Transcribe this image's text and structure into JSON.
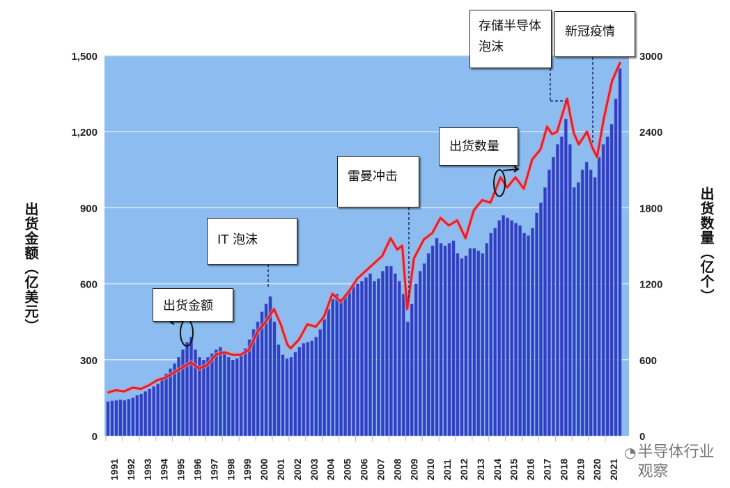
{
  "chart_data": {
    "type": "bar+line",
    "left_axis": {
      "title": "出货金额（亿美元）",
      "ticks": [
        "0",
        "300",
        "600",
        "900",
        "1,200",
        "1,500"
      ],
      "range": [
        0,
        1500
      ]
    },
    "right_axis": {
      "title": "出货数量（亿个）",
      "ticks": [
        "0",
        "600",
        "1200",
        "1800",
        "2400",
        "3000"
      ],
      "range": [
        0,
        3000
      ]
    },
    "x_ticks": [
      "1991",
      "1992",
      "1993",
      "1994",
      "1995",
      "1996",
      "1997",
      "1998",
      "1999",
      "2000",
      "2001",
      "2002",
      "2003",
      "2004",
      "2005",
      "2006",
      "2007",
      "2008",
      "2009",
      "2010",
      "2011",
      "2012",
      "2013",
      "2014",
      "2015",
      "2016",
      "2017",
      "2018",
      "2019",
      "2020",
      "2021"
    ],
    "grid": true,
    "series": [
      {
        "name": "出货金额",
        "type": "bar",
        "axis": "left",
        "frequency": "quarterly",
        "start_year": 1991,
        "color": "#2f3fbf",
        "values": [
          135,
          138,
          140,
          142,
          140,
          145,
          150,
          160,
          165,
          175,
          185,
          195,
          205,
          225,
          245,
          265,
          285,
          310,
          340,
          370,
          390,
          340,
          310,
          300,
          310,
          325,
          340,
          350,
          330,
          310,
          300,
          305,
          320,
          345,
          380,
          420,
          450,
          490,
          520,
          550,
          450,
          360,
          320,
          305,
          310,
          330,
          350,
          365,
          370,
          375,
          390,
          420,
          460,
          500,
          540,
          560,
          540,
          555,
          575,
          590,
          600,
          610,
          625,
          640,
          610,
          620,
          650,
          670,
          670,
          640,
          610,
          560,
          450,
          520,
          600,
          650,
          680,
          720,
          750,
          780,
          760,
          750,
          760,
          770,
          720,
          700,
          710,
          740,
          740,
          730,
          720,
          760,
          800,
          820,
          850,
          870,
          860,
          850,
          840,
          830,
          800,
          790,
          820,
          880,
          920,
          980,
          1050,
          1100,
          1150,
          1180,
          1250,
          1150,
          980,
          1000,
          1050,
          1080,
          1050,
          1020,
          1100,
          1150,
          1180,
          1230,
          1330,
          1450
        ]
      },
      {
        "name": "出货数量",
        "type": "line",
        "axis": "right",
        "color": "#e0202c",
        "points": [
          [
            1991,
            340
          ],
          [
            1991.5,
            360
          ],
          [
            1992,
            350
          ],
          [
            1992.5,
            380
          ],
          [
            1993,
            370
          ],
          [
            1993.5,
            400
          ],
          [
            1994,
            440
          ],
          [
            1994.5,
            460
          ],
          [
            1995,
            500
          ],
          [
            1995.5,
            540
          ],
          [
            1996,
            580
          ],
          [
            1996.5,
            530
          ],
          [
            1997,
            560
          ],
          [
            1997.5,
            640
          ],
          [
            1998,
            660
          ],
          [
            1998.5,
            640
          ],
          [
            1999,
            640
          ],
          [
            1999.5,
            680
          ],
          [
            2000,
            820
          ],
          [
            2000.5,
            900
          ],
          [
            2001,
            1000
          ],
          [
            2001.4,
            880
          ],
          [
            2001.8,
            720
          ],
          [
            2002,
            690
          ],
          [
            2002.5,
            760
          ],
          [
            2003,
            880
          ],
          [
            2003.5,
            860
          ],
          [
            2004,
            940
          ],
          [
            2004.5,
            1120
          ],
          [
            2005,
            1060
          ],
          [
            2005.5,
            1140
          ],
          [
            2006,
            1240
          ],
          [
            2006.5,
            1300
          ],
          [
            2007,
            1360
          ],
          [
            2007.5,
            1420
          ],
          [
            2008,
            1560
          ],
          [
            2008.4,
            1470
          ],
          [
            2008.7,
            1500
          ],
          [
            2009,
            1000
          ],
          [
            2009.4,
            1400
          ],
          [
            2010,
            1550
          ],
          [
            2010.5,
            1600
          ],
          [
            2011,
            1720
          ],
          [
            2011.5,
            1660
          ],
          [
            2012,
            1700
          ],
          [
            2012.5,
            1560
          ],
          [
            2013,
            1780
          ],
          [
            2013.5,
            1860
          ],
          [
            2014,
            1840
          ],
          [
            2014.6,
            2040
          ],
          [
            2015,
            1960
          ],
          [
            2015.5,
            2040
          ],
          [
            2016,
            1950
          ],
          [
            2016.5,
            2180
          ],
          [
            2017,
            2260
          ],
          [
            2017.4,
            2440
          ],
          [
            2017.7,
            2380
          ],
          [
            2018,
            2400
          ],
          [
            2018.6,
            2660
          ],
          [
            2019,
            2390
          ],
          [
            2019.3,
            2300
          ],
          [
            2019.8,
            2400
          ],
          [
            2020.1,
            2280
          ],
          [
            2020.4,
            2200
          ],
          [
            2020.8,
            2500
          ],
          [
            2021.3,
            2800
          ],
          [
            2021.8,
            2950
          ]
        ]
      }
    ],
    "annotations": [
      {
        "id": "amount",
        "text": "出货金额"
      },
      {
        "id": "it",
        "text": "IT 泡沫"
      },
      {
        "id": "lehman",
        "text": "雷曼冲击"
      },
      {
        "id": "count",
        "text": "出货数量"
      },
      {
        "id": "memory",
        "text": "存储半导体泡沫"
      },
      {
        "id": "covid",
        "text": "新冠疫情"
      }
    ]
  },
  "watermark": "半导体行业观察",
  "colors": {
    "plot_bg": "#8dbdf0",
    "bar": "#2f3fbf",
    "line": "#e0202c",
    "grid": "#d8e8fb"
  }
}
